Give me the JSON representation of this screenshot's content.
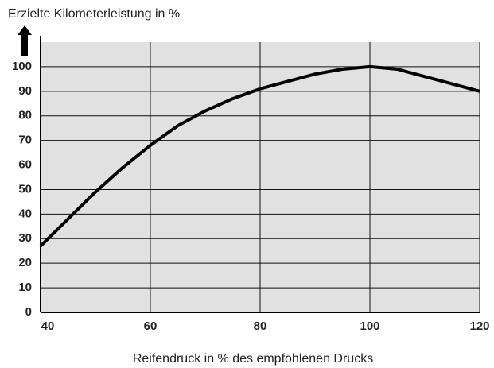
{
  "chart_data": {
    "type": "line",
    "title": "Erzielte Kilometerleistung in %",
    "x_label": "Reifendruck in % des empfohlenen Drucks",
    "x": [
      40,
      45,
      50,
      55,
      60,
      65,
      70,
      75,
      80,
      85,
      90,
      95,
      100,
      105,
      110,
      115,
      120
    ],
    "series": [
      {
        "color": "#000000",
        "values": [
          27,
          38,
          49,
          59,
          68,
          76,
          82,
          87,
          91,
          94,
          97,
          99,
          100,
          99,
          96,
          93,
          90
        ]
      }
    ],
    "xlim": [
      40,
      120
    ],
    "xticks": [
      40,
      60,
      80,
      100,
      120
    ],
    "ylim": [
      0,
      110
    ],
    "yticks": [
      0,
      10,
      20,
      30,
      40,
      50,
      60,
      70,
      80,
      90,
      100
    ],
    "grid": true
  }
}
